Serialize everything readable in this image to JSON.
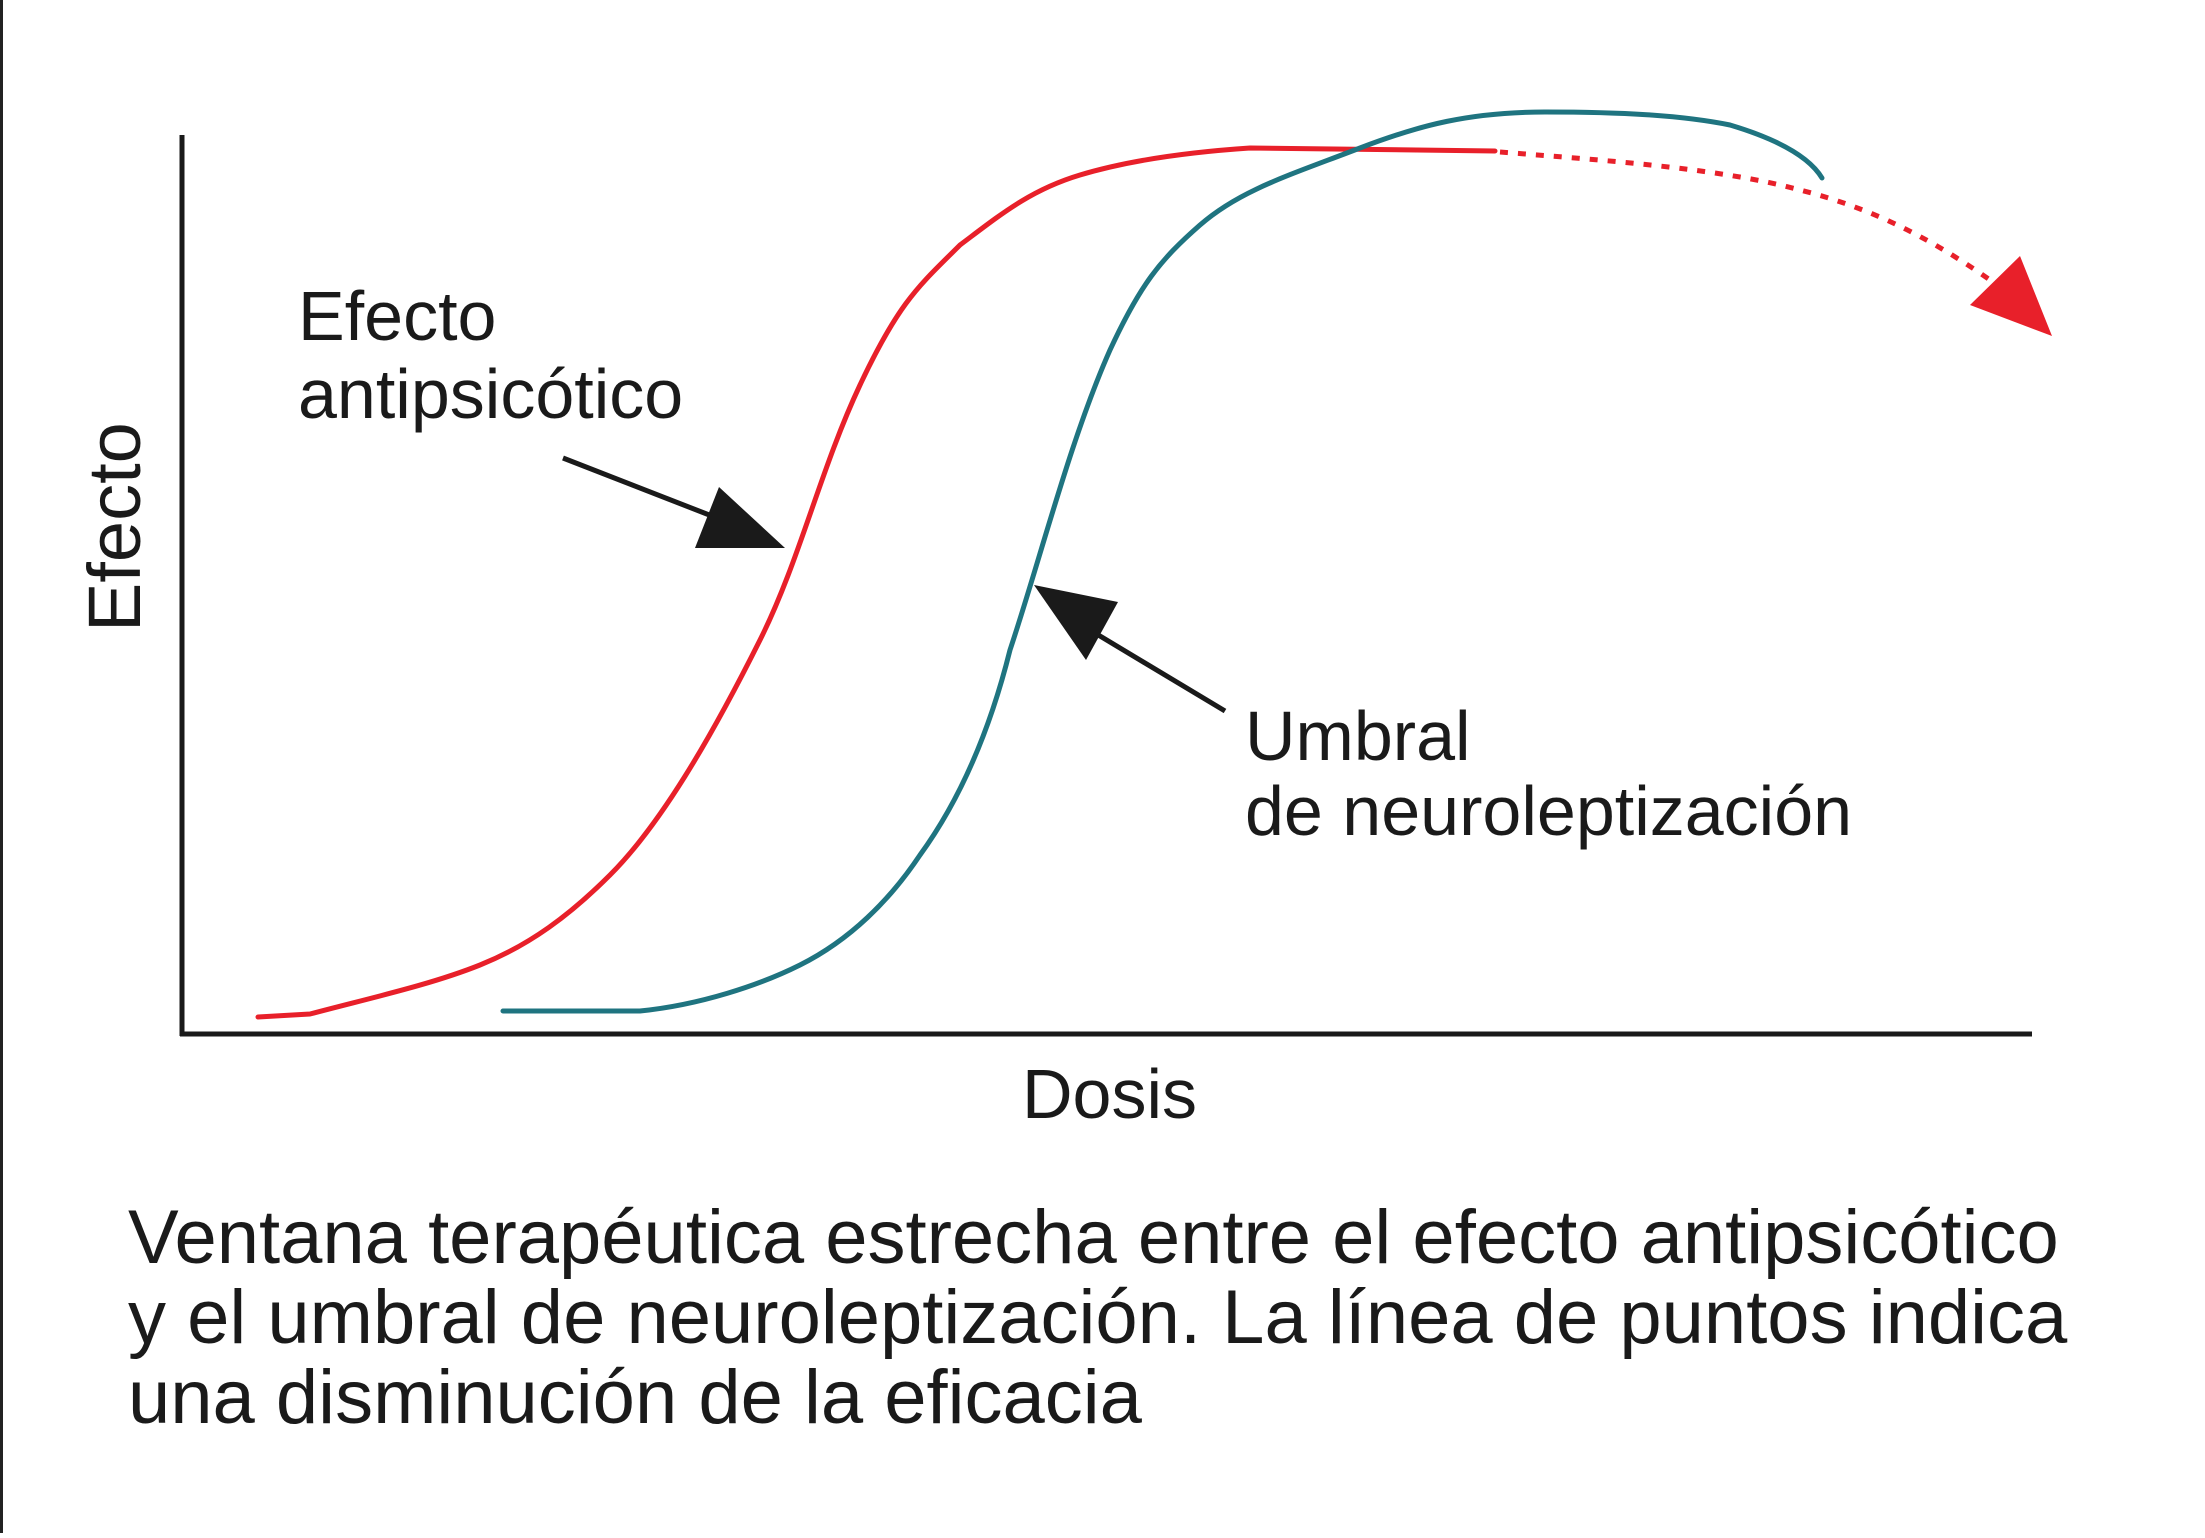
{
  "diagram": {
    "y_axis_label": "Efecto",
    "x_axis_label": "Dosis",
    "label_antipsychotic": [
      "Efecto",
      "antipsicótico"
    ],
    "label_threshold": [
      "Umbral",
      "de neuroleptización"
    ],
    "caption_lines": [
      "Ventana terapéutica estrecha entre el efecto antipsicótico",
      "y el umbral de neuroleptización. La línea de puntos indica",
      "una disminución de la eficacia"
    ],
    "colors": {
      "antipsychotic_curve": "#e8202a",
      "threshold_curve": "#1f7480",
      "axes": "#1a1a1a",
      "pointer_arrows": "#1a1a1a"
    }
  }
}
